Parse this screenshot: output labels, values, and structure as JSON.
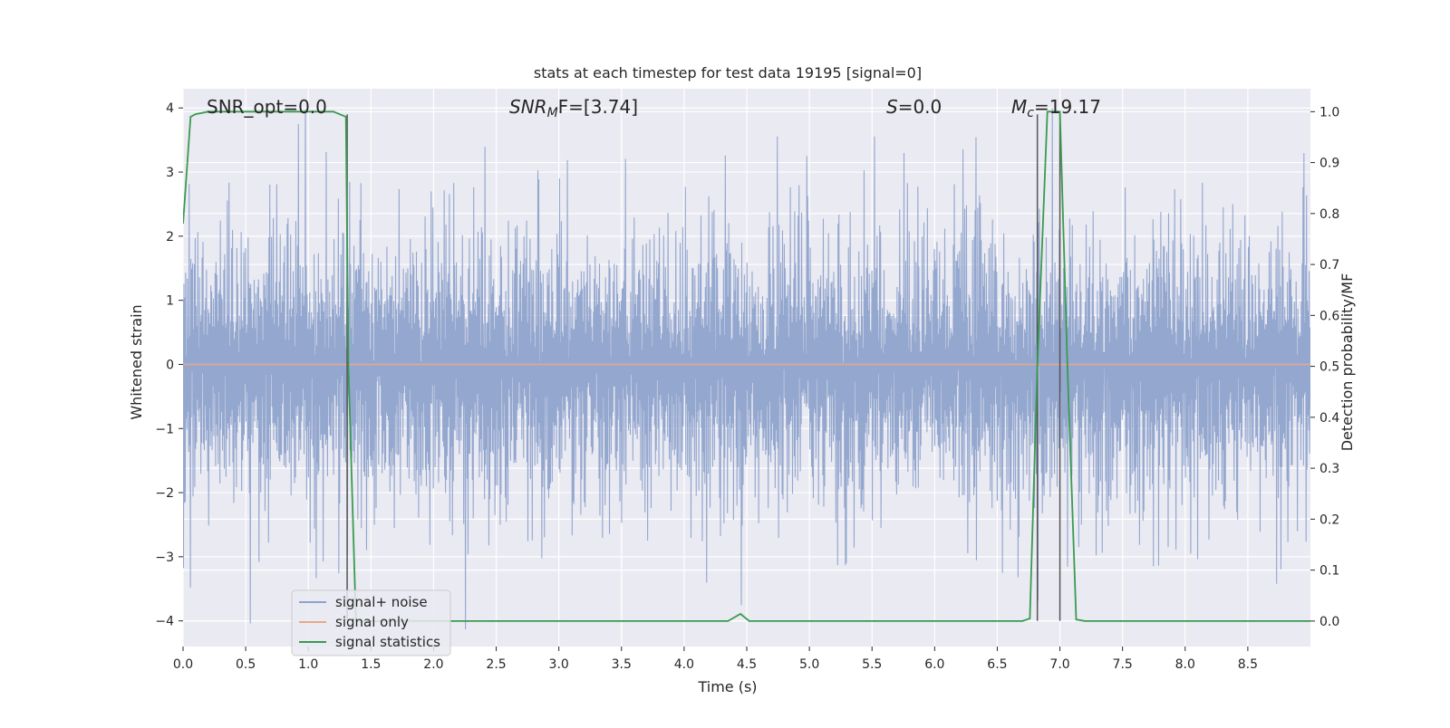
{
  "chart_data": {
    "type": "line",
    "title": "stats at each timestep for test data 19195 [signal=0]",
    "xlabel": "Time (s)",
    "ylabel": "Whitened strain",
    "ylabel_right": "Detection probability/MF",
    "xlim": [
      0.0,
      9.0
    ],
    "ylim": [
      -4.4,
      4.3
    ],
    "ylim_right": [
      -0.05,
      1.045
    ],
    "x_ticks": [
      0.0,
      0.5,
      1.0,
      1.5,
      2.0,
      2.5,
      3.0,
      3.5,
      4.0,
      4.5,
      5.0,
      5.5,
      6.0,
      6.5,
      7.0,
      7.5,
      8.0,
      8.5
    ],
    "x_tick_labels": [
      "0.0",
      "0.5",
      "1.0",
      "1.5",
      "2.0",
      "2.5",
      "3.0",
      "3.5",
      "4.0",
      "4.5",
      "5.0",
      "5.5",
      "6.0",
      "6.5",
      "7.0",
      "7.5",
      "8.0",
      "8.5"
    ],
    "y_ticks": [
      -4,
      -3,
      -2,
      -1,
      0,
      1,
      2,
      3,
      4
    ],
    "y_tick_labels": [
      "−4",
      "−3",
      "−2",
      "−1",
      "0",
      "1",
      "2",
      "3",
      "4"
    ],
    "y_right_ticks": [
      0.0,
      0.1,
      0.2,
      0.3,
      0.4,
      0.5,
      0.6,
      0.7,
      0.8,
      0.9,
      1.0
    ],
    "y_right_tick_labels": [
      "0.0",
      "0.1",
      "0.2",
      "0.3",
      "0.4",
      "0.5",
      "0.6",
      "0.7",
      "0.8",
      "0.9",
      "1.0"
    ],
    "grid": true,
    "legend": {
      "location": "lower-left",
      "entries": [
        {
          "label": "signal+ noise",
          "color": "#8fa3cc"
        },
        {
          "label": "signal only",
          "color": "#e8a88a"
        },
        {
          "label": "signal statistics",
          "color": "#3a9a4f"
        }
      ]
    },
    "annotations": {
      "snr_opt": "SNR_opt=0.0",
      "snr_mf_base": "SNR",
      "snr_mf_sub": "M",
      "snr_mf_rest": "F=[3.74]",
      "s_italic": "S",
      "s_rest": "=0.0",
      "mc_base": "M",
      "mc_sub": "c",
      "mc_rest": "=19.17"
    },
    "series": [
      {
        "name": "signal+ noise",
        "axis": "left",
        "style": "noise",
        "x_range": [
          0.0,
          9.0
        ],
        "samples": 2600,
        "envelope_pos": 1.9,
        "envelope_neg": -2.2,
        "color": "#8fa3cc"
      },
      {
        "name": "signal only",
        "axis": "left",
        "x": [
          0.0,
          9.0
        ],
        "y": [
          0.0,
          0.0
        ],
        "color": "#e8a88a"
      },
      {
        "name": "signal statistics",
        "axis": "right",
        "color": "#3a9a4f",
        "x": [
          0.0,
          0.06,
          0.1,
          0.2,
          1.2,
          1.3,
          1.32,
          1.38,
          1.45,
          4.35,
          4.45,
          4.52,
          4.6,
          6.7,
          6.76,
          6.82,
          6.9,
          7.0,
          7.06,
          7.13,
          7.2,
          9.0
        ],
        "y": [
          0.78,
          0.99,
          0.995,
          1.0,
          1.0,
          0.99,
          0.5,
          0.0,
          0.0,
          0.0,
          0.014,
          0.0,
          0.0,
          0.0,
          0.005,
          0.5,
          1.0,
          1.0,
          0.5,
          0.003,
          0.0,
          0.0
        ]
      }
    ],
    "vertical_lines": [
      {
        "x": 1.31,
        "y_from": -4.0,
        "y_to": 3.9,
        "color": "#555555"
      },
      {
        "x": 6.82,
        "y_from": -4.0,
        "y_to": 3.9,
        "color": "#555555"
      },
      {
        "x": 7.0,
        "y_from": -4.0,
        "y_to": 3.9,
        "color": "#555555"
      }
    ],
    "colors": {
      "plot_background": "#eaeaf2",
      "grid": "#ffffff",
      "text": "#262626"
    }
  }
}
